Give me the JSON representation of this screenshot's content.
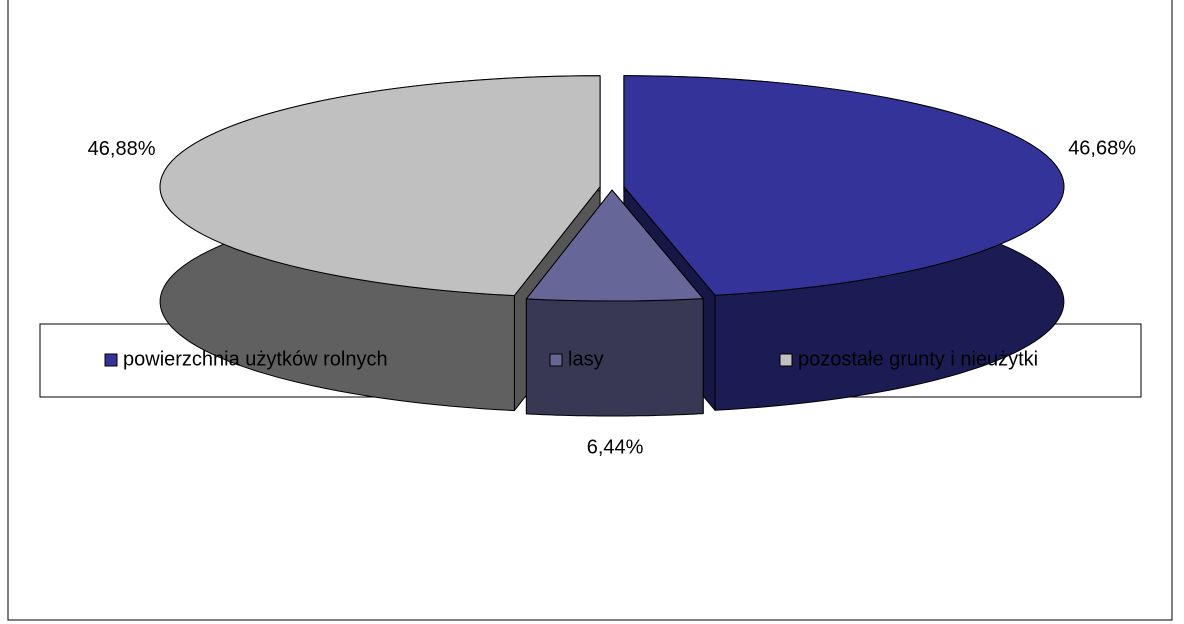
{
  "chart_data": {
    "type": "pie",
    "categories": [
      "powierzchnia użytków rolnych",
      "lasy",
      "pozostałe grunty i nieużytki"
    ],
    "values": [
      46.68,
      6.44,
      46.88
    ],
    "value_labels": [
      "46,68%",
      "6,44%",
      "46,88%"
    ],
    "colors": [
      "#333399",
      "#666699",
      "#c0c0c0"
    ],
    "legend": "bottom"
  }
}
